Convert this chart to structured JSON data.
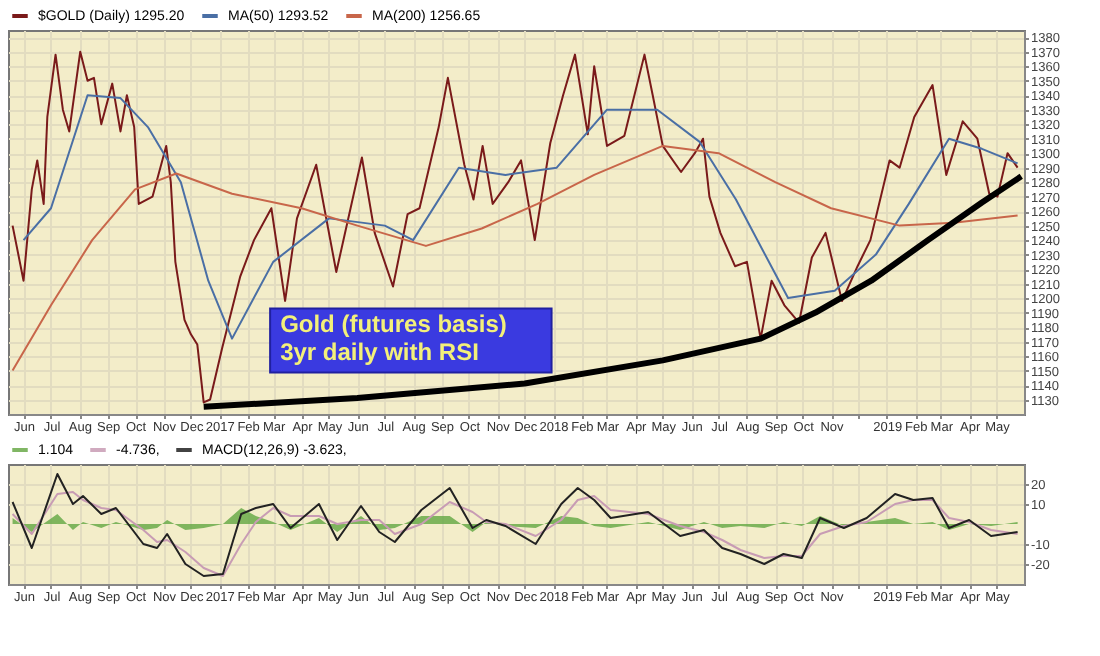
{
  "chart_data": [
    {
      "type": "line",
      "annotations": [
        "Gold (futures basis)",
        "3yr daily with RSI"
      ],
      "legend": "top",
      "grid": true,
      "marker": "none",
      "line_style": "solid",
      "xlim": [
        "2016-05-15",
        "2019-05-31"
      ],
      "ylim": [
        1120,
        1385
      ],
      "yticks": [
        1130,
        1140,
        1150,
        1160,
        1170,
        1180,
        1190,
        1200,
        1210,
        1220,
        1230,
        1240,
        1250,
        1260,
        1270,
        1280,
        1290,
        1300,
        1310,
        1320,
        1330,
        1340,
        1350,
        1360,
        1370,
        1380
      ],
      "xticks": [
        {
          "value": "2016-06-01",
          "label": "Jun"
        },
        {
          "value": "2016-07-01",
          "label": "Jul"
        },
        {
          "value": "2016-08-01",
          "label": "Aug"
        },
        {
          "value": "2016-09-01",
          "label": "Sep"
        },
        {
          "value": "2016-10-01",
          "label": "Oct"
        },
        {
          "value": "2016-11-01",
          "label": "Nov"
        },
        {
          "value": "2016-12-01",
          "label": "Dec"
        },
        {
          "value": "2017-01-01",
          "label": "2017"
        },
        {
          "value": "2017-02-01",
          "label": "Feb"
        },
        {
          "value": "2017-03-01",
          "label": "Mar"
        },
        {
          "value": "2017-04-01",
          "label": "Apr"
        },
        {
          "value": "2017-05-01",
          "label": "May"
        },
        {
          "value": "2017-06-01",
          "label": "Jun"
        },
        {
          "value": "2017-07-01",
          "label": "Jul"
        },
        {
          "value": "2017-08-01",
          "label": "Aug"
        },
        {
          "value": "2017-09-01",
          "label": "Sep"
        },
        {
          "value": "2017-10-01",
          "label": "Oct"
        },
        {
          "value": "2017-11-01",
          "label": "Nov"
        },
        {
          "value": "2017-12-01",
          "label": "Dec"
        },
        {
          "value": "2018-01-01",
          "label": "2018"
        },
        {
          "value": "2018-02-01",
          "label": "Feb"
        },
        {
          "value": "2018-03-01",
          "label": "Mar"
        },
        {
          "value": "2018-04-01",
          "label": "Apr"
        },
        {
          "value": "2018-05-01",
          "label": "May"
        },
        {
          "value": "2018-06-01",
          "label": "Jun"
        },
        {
          "value": "2018-07-01",
          "label": "Jul"
        },
        {
          "value": "2018-08-01",
          "label": "Aug"
        },
        {
          "value": "2018-09-01",
          "label": "Sep"
        },
        {
          "value": "2018-10-01",
          "label": "Oct"
        },
        {
          "value": "2018-11-01",
          "label": "Nov"
        },
        {
          "value": "2018-12-01",
          "label": null
        },
        {
          "value": "2019-01-01",
          "label": "2019"
        },
        {
          "value": "2019-02-01",
          "label": "Feb"
        },
        {
          "value": "2019-03-01",
          "label": "Mar"
        },
        {
          "value": "2019-04-01",
          "label": "Apr"
        },
        {
          "value": "2019-05-01",
          "label": "May"
        }
      ],
      "series": [
        {
          "name": "$GOLD (Daily) 1295.20",
          "color": "#7a1a1a",
          "x": [
            "2016-05-20",
            "2016-06-01",
            "2016-06-10",
            "2016-06-16",
            "2016-06-23",
            "2016-06-27",
            "2016-07-06",
            "2016-07-14",
            "2016-07-21",
            "2016-08-02",
            "2016-08-10",
            "2016-08-17",
            "2016-08-25",
            "2016-09-06",
            "2016-09-15",
            "2016-09-22",
            "2016-09-30",
            "2016-10-05",
            "2016-10-20",
            "2016-11-04",
            "2016-11-09",
            "2016-11-14",
            "2016-11-24",
            "2016-12-01",
            "2016-12-08",
            "2016-12-15",
            "2016-12-22",
            "2017-01-04",
            "2017-01-24",
            "2017-02-08",
            "2017-02-27",
            "2017-03-14",
            "2017-03-27",
            "2017-04-17",
            "2017-05-09",
            "2017-06-06",
            "2017-06-20",
            "2017-07-10",
            "2017-07-26",
            "2017-08-08",
            "2017-08-29",
            "2017-09-08",
            "2017-09-26",
            "2017-10-06",
            "2017-10-16",
            "2017-10-27",
            "2017-11-13",
            "2017-11-27",
            "2017-12-12",
            "2017-12-29",
            "2018-01-12",
            "2018-01-25",
            "2018-02-08",
            "2018-02-15",
            "2018-03-01",
            "2018-03-20",
            "2018-04-11",
            "2018-04-20",
            "2018-05-01",
            "2018-05-21",
            "2018-06-05",
            "2018-06-14",
            "2018-06-21",
            "2018-07-03",
            "2018-07-19",
            "2018-08-01",
            "2018-08-16",
            "2018-08-28",
            "2018-09-11",
            "2018-09-27",
            "2018-10-11",
            "2018-10-26",
            "2018-11-13",
            "2018-11-30",
            "2018-12-14",
            "2019-01-04",
            "2019-01-15",
            "2019-01-31",
            "2019-02-20",
            "2019-03-07",
            "2019-03-25",
            "2019-04-10",
            "2019-04-23",
            "2019-05-02",
            "2019-05-13",
            "2019-05-24"
          ],
          "values": [
            1250,
            1212,
            1275,
            1295,
            1265,
            1325,
            1368,
            1330,
            1315,
            1370,
            1350,
            1352,
            1320,
            1348,
            1315,
            1340,
            1318,
            1265,
            1270,
            1305,
            1280,
            1225,
            1185,
            1175,
            1168,
            1128,
            1130,
            1165,
            1215,
            1240,
            1262,
            1198,
            1255,
            1292,
            1218,
            1297,
            1245,
            1208,
            1258,
            1262,
            1318,
            1352,
            1292,
            1268,
            1305,
            1265,
            1280,
            1295,
            1240,
            1307,
            1340,
            1368,
            1313,
            1360,
            1305,
            1312,
            1368,
            1340,
            1305,
            1287,
            1300,
            1310,
            1270,
            1245,
            1222,
            1225,
            1172,
            1212,
            1195,
            1183,
            1228,
            1245,
            1198,
            1222,
            1240,
            1295,
            1290,
            1325,
            1347,
            1285,
            1322,
            1310,
            1272,
            1270,
            1300,
            1290
          ]
        },
        {
          "name": "MA(50) 1293.52",
          "color": "#4a6fa5",
          "x": [
            "2016-06-01",
            "2016-07-01",
            "2016-08-10",
            "2016-09-15",
            "2016-10-15",
            "2016-11-20",
            "2016-12-20",
            "2017-01-15",
            "2017-03-01",
            "2017-05-01",
            "2017-07-01",
            "2017-08-01",
            "2017-09-20",
            "2017-11-10",
            "2018-01-05",
            "2018-03-01",
            "2018-04-25",
            "2018-06-10",
            "2018-07-20",
            "2018-09-15",
            "2018-11-05",
            "2018-12-20",
            "2019-01-25",
            "2019-03-10",
            "2019-04-15",
            "2019-05-24"
          ],
          "values": [
            1240,
            1262,
            1340,
            1338,
            1318,
            1280,
            1212,
            1172,
            1225,
            1255,
            1250,
            1240,
            1290,
            1285,
            1290,
            1330,
            1330,
            1308,
            1268,
            1200,
            1205,
            1230,
            1265,
            1310,
            1303,
            1293
          ]
        },
        {
          "name": "MA(200) 1256.65",
          "color": "#c8664a",
          "x": [
            "2016-05-20",
            "2016-07-01",
            "2016-08-15",
            "2016-10-01",
            "2016-11-15",
            "2017-01-15",
            "2017-04-01",
            "2017-06-01",
            "2017-08-15",
            "2017-10-15",
            "2017-12-15",
            "2018-02-15",
            "2018-05-01",
            "2018-07-01",
            "2018-09-01",
            "2018-11-01",
            "2019-01-15",
            "2019-03-15",
            "2019-05-24"
          ],
          "values": [
            1150,
            1195,
            1240,
            1275,
            1286,
            1272,
            1262,
            1250,
            1236,
            1248,
            1265,
            1285,
            1305,
            1300,
            1280,
            1262,
            1250,
            1252,
            1257
          ]
        },
        {
          "color": "#000000",
          "x": [
            "2016-12-15",
            "2017-06-01",
            "2017-12-01",
            "2018-05-01",
            "2018-08-16",
            "2018-10-15",
            "2018-12-15",
            "2019-02-15",
            "2019-04-15",
            "2019-05-28"
          ],
          "values": [
            1125,
            1131,
            1141,
            1157,
            1172,
            1190,
            1212,
            1240,
            1266,
            1284
          ]
        }
      ]
    },
    {
      "type": "line",
      "legend": "top",
      "grid": true,
      "marker": "none",
      "xlim": [
        "2016-05-15",
        "2019-05-31"
      ],
      "ylim": [
        -30,
        30
      ],
      "yticks": [
        -20,
        -10,
        10,
        20
      ],
      "xticks": [
        {
          "value": "2016-06-01",
          "label": "Jun"
        },
        {
          "value": "2016-07-01",
          "label": "Jul"
        },
        {
          "value": "2016-08-01",
          "label": "Aug"
        },
        {
          "value": "2016-09-01",
          "label": "Sep"
        },
        {
          "value": "2016-10-01",
          "label": "Oct"
        },
        {
          "value": "2016-11-01",
          "label": "Nov"
        },
        {
          "value": "2016-12-01",
          "label": "Dec"
        },
        {
          "value": "2017-01-01",
          "label": "2017"
        },
        {
          "value": "2017-02-01",
          "label": "Feb"
        },
        {
          "value": "2017-03-01",
          "label": "Mar"
        },
        {
          "value": "2017-04-01",
          "label": "Apr"
        },
        {
          "value": "2017-05-01",
          "label": "May"
        },
        {
          "value": "2017-06-01",
          "label": "Jun"
        },
        {
          "value": "2017-07-01",
          "label": "Jul"
        },
        {
          "value": "2017-08-01",
          "label": "Aug"
        },
        {
          "value": "2017-09-01",
          "label": "Sep"
        },
        {
          "value": "2017-10-01",
          "label": "Oct"
        },
        {
          "value": "2017-11-01",
          "label": "Nov"
        },
        {
          "value": "2017-12-01",
          "label": "Dec"
        },
        {
          "value": "2018-01-01",
          "label": "2018"
        },
        {
          "value": "2018-02-01",
          "label": "Feb"
        },
        {
          "value": "2018-03-01",
          "label": "Mar"
        },
        {
          "value": "2018-04-01",
          "label": "Apr"
        },
        {
          "value": "2018-05-01",
          "label": "May"
        },
        {
          "value": "2018-06-01",
          "label": "Jun"
        },
        {
          "value": "2018-07-01",
          "label": "Jul"
        },
        {
          "value": "2018-08-01",
          "label": "Aug"
        },
        {
          "value": "2018-09-01",
          "label": "Sep"
        },
        {
          "value": "2018-10-01",
          "label": "Oct"
        },
        {
          "value": "2018-11-01",
          "label": "Nov"
        },
        {
          "value": "2018-12-01",
          "label": null
        },
        {
          "value": "2019-01-01",
          "label": "2019"
        },
        {
          "value": "2019-02-01",
          "label": "Feb"
        },
        {
          "value": "2019-03-01",
          "label": "Mar"
        },
        {
          "value": "2019-04-01",
          "label": "Apr"
        },
        {
          "value": "2019-05-01",
          "label": "May"
        }
      ],
      "x": [
        "2016-05-20",
        "2016-06-10",
        "2016-07-08",
        "2016-07-25",
        "2016-08-05",
        "2016-08-25",
        "2016-09-10",
        "2016-10-10",
        "2016-10-25",
        "2016-11-05",
        "2016-11-25",
        "2016-12-15",
        "2017-01-05",
        "2017-01-25",
        "2017-02-10",
        "2017-03-01",
        "2017-03-20",
        "2017-04-20",
        "2017-05-10",
        "2017-06-05",
        "2017-06-25",
        "2017-07-12",
        "2017-08-10",
        "2017-09-10",
        "2017-10-05",
        "2017-10-20",
        "2017-11-10",
        "2017-12-13",
        "2018-01-10",
        "2018-01-28",
        "2018-02-15",
        "2018-03-05",
        "2018-04-15",
        "2018-05-20",
        "2018-06-15",
        "2018-07-05",
        "2018-07-25",
        "2018-08-20",
        "2018-09-10",
        "2018-09-30",
        "2018-10-20",
        "2018-11-15",
        "2018-12-10",
        "2019-01-10",
        "2019-01-30",
        "2019-02-20",
        "2019-03-10",
        "2019-04-01",
        "2019-04-25",
        "2019-05-24"
      ],
      "series": [
        {
          "name": "1.104",
          "type": "area",
          "color": "#6aaa4a",
          "values": [
            3,
            -4,
            5,
            -3,
            1,
            -2,
            1,
            -3,
            -2,
            2,
            -3,
            -2,
            0,
            8,
            4,
            1,
            -3,
            3,
            -4,
            4,
            -3,
            -2,
            4,
            4,
            -4,
            1,
            -1,
            -2,
            4,
            3,
            -1,
            -2,
            1,
            -3,
            1,
            -2,
            -1,
            -2,
            1,
            -1,
            4,
            -1,
            1,
            3,
            0,
            1,
            -3,
            0,
            -1,
            1
          ]
        },
        {
          "name": "-4.736,",
          "color": "#c89cb4",
          "values": [
            5,
            -5,
            15,
            16,
            12,
            8,
            7,
            -3,
            -9,
            -8,
            -14,
            -22,
            -26,
            -10,
            1,
            8,
            4,
            4,
            0,
            2,
            2,
            -5,
            0,
            11,
            6,
            1,
            0,
            -6,
            2,
            12,
            14,
            7,
            5,
            -1,
            -4,
            -8,
            -13,
            -17,
            -16,
            -16,
            -5,
            -1,
            1,
            10,
            12,
            12,
            3,
            1,
            -3,
            -5
          ]
        },
        {
          "name": "MACD(12,26,9) -3.623,",
          "color": "#222222",
          "values": [
            11,
            -12,
            25,
            10,
            14,
            5,
            8,
            -10,
            -12,
            -5,
            -20,
            -26,
            -25,
            5,
            8,
            10,
            -2,
            10,
            -8,
            9,
            -4,
            -9,
            7,
            18,
            -2,
            2,
            -1,
            -10,
            10,
            18,
            12,
            3,
            6,
            -6,
            -3,
            -12,
            -15,
            -20,
            -15,
            -17,
            3,
            -2,
            3,
            15,
            12,
            13,
            -2,
            2,
            -6,
            -4
          ]
        }
      ]
    }
  ]
}
